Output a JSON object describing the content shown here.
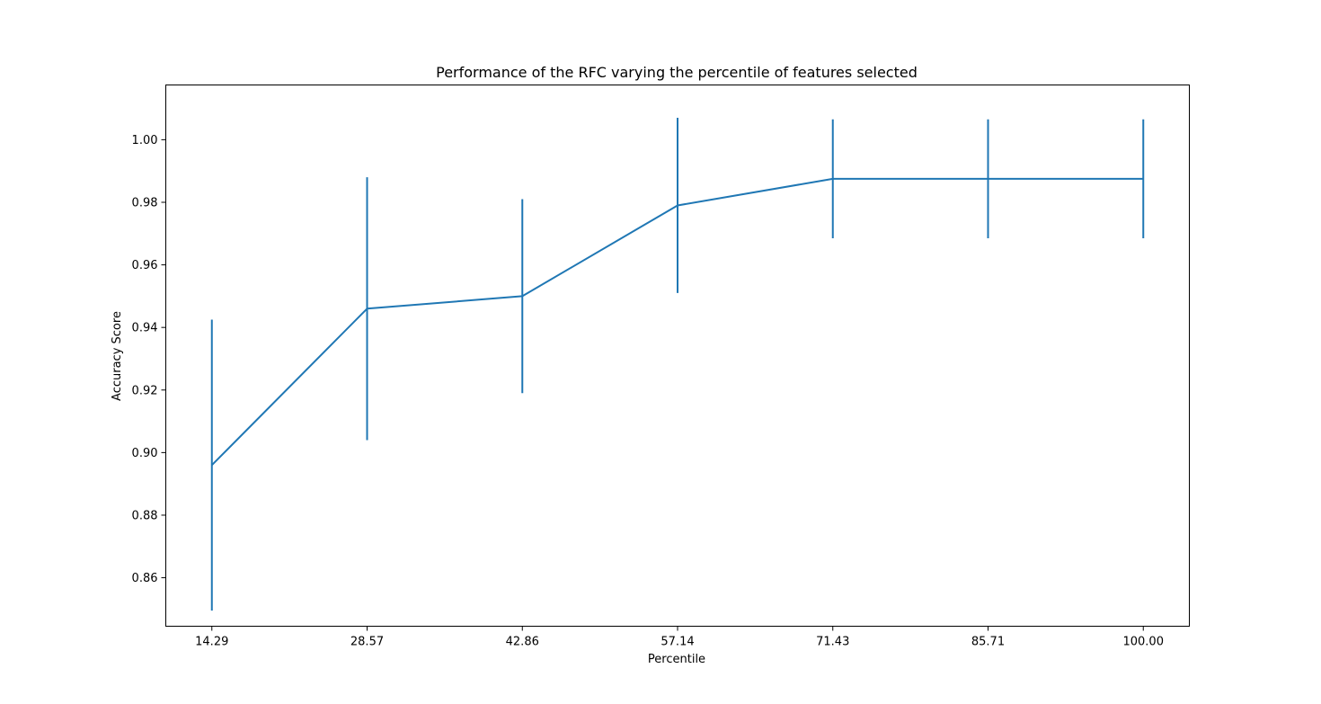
{
  "chart_data": {
    "type": "line",
    "title": "Performance of the RFC varying the percentile of features selected",
    "xlabel": "Percentile",
    "ylabel": "Accuracy Score",
    "x": [
      "14.29",
      "28.57",
      "42.86",
      "57.14",
      "71.43",
      "85.71",
      "100.00"
    ],
    "series": [
      {
        "values": [
          0.896,
          0.946,
          0.95,
          0.979,
          0.9875,
          0.9875,
          0.9875
        ],
        "error": [
          0.0465,
          0.042,
          0.031,
          0.028,
          0.019,
          0.019,
          0.019
        ],
        "color": "#1f77b4"
      }
    ],
    "yticks": [
      "0.86",
      "0.88",
      "0.90",
      "0.92",
      "0.94",
      "0.96",
      "0.98",
      "1.00"
    ],
    "ylim": [
      0.8445,
      1.0175
    ],
    "grid": false
  }
}
